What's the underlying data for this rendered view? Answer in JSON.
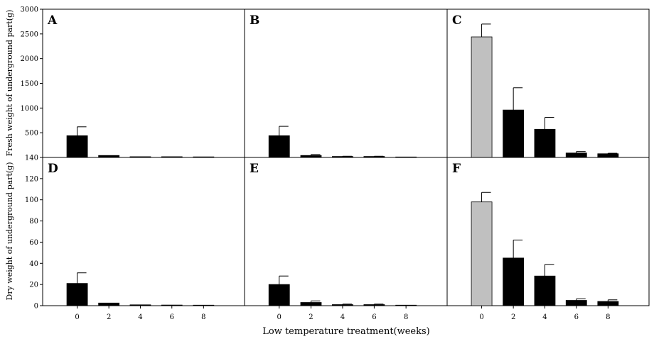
{
  "figure": {
    "xlabel": "Low temperature treatment(weeks)",
    "ylabel_top": "Fresh weight of underground part(g)",
    "ylabel_bottom": "Dry weight of underground part(g)"
  },
  "colors": {
    "treated_bar": "#000000",
    "control_bar": "#c0c0c0",
    "axis": "#000000"
  },
  "chart_data": [
    {
      "type": "bar",
      "panel": "A",
      "row": "top",
      "categories": [
        "0",
        "2",
        "4",
        "6",
        "8"
      ],
      "values": [
        440,
        40,
        15,
        15,
        12
      ],
      "errors": [
        180,
        0,
        0,
        0,
        0
      ],
      "bar_colors": [
        "black",
        "black",
        "black",
        "black",
        "black"
      ],
      "ylim": [
        0,
        3000
      ],
      "yticks": [
        0,
        500,
        1000,
        1500,
        2000,
        2500,
        3000
      ],
      "ytick_labels": [
        "",
        "500",
        "1000",
        "1500",
        "2000",
        "2500",
        "3000"
      ]
    },
    {
      "type": "bar",
      "panel": "B",
      "row": "top",
      "categories": [
        "0",
        "2",
        "4",
        "6",
        "8"
      ],
      "values": [
        440,
        40,
        20,
        20,
        10
      ],
      "errors": [
        190,
        20,
        5,
        5,
        0
      ],
      "bar_colors": [
        "black",
        "black",
        "black",
        "black",
        "black"
      ],
      "ylim": [
        0,
        3000
      ],
      "yticks": [
        0,
        500,
        1000,
        1500,
        2000,
        2500,
        3000
      ]
    },
    {
      "type": "bar",
      "panel": "C",
      "row": "top",
      "categories": [
        "0",
        "2",
        "4",
        "6",
        "8"
      ],
      "values": [
        2440,
        960,
        570,
        90,
        75
      ],
      "errors": [
        260,
        450,
        240,
        30,
        10
      ],
      "bar_colors": [
        "gray",
        "black",
        "black",
        "black",
        "black"
      ],
      "ylim": [
        0,
        3000
      ],
      "yticks": [
        0,
        500,
        1000,
        1500,
        2000,
        2500,
        3000
      ]
    },
    {
      "type": "bar",
      "panel": "D",
      "row": "bottom",
      "categories": [
        "0",
        "2",
        "4",
        "6",
        "8"
      ],
      "values": [
        21,
        2.5,
        0.8,
        0.6,
        0.5
      ],
      "errors": [
        10,
        0,
        0,
        0,
        0
      ],
      "bar_colors": [
        "black",
        "black",
        "black",
        "black",
        "black"
      ],
      "ylim": [
        0,
        140
      ],
      "yticks": [
        0,
        20,
        40,
        60,
        80,
        100,
        120,
        140
      ],
      "ytick_labels": [
        "0",
        "20",
        "40",
        "60",
        "80",
        "100",
        "120",
        "140"
      ]
    },
    {
      "type": "bar",
      "panel": "E",
      "row": "bottom",
      "categories": [
        "0",
        "2",
        "4",
        "6",
        "8"
      ],
      "values": [
        20,
        3,
        1,
        1,
        0.5
      ],
      "errors": [
        8,
        1.5,
        0.5,
        0.5,
        0
      ],
      "bar_colors": [
        "black",
        "black",
        "black",
        "black",
        "black"
      ],
      "ylim": [
        0,
        140
      ],
      "yticks": [
        0,
        20,
        40,
        60,
        80,
        100,
        120,
        140
      ]
    },
    {
      "type": "bar",
      "panel": "F",
      "row": "bottom",
      "categories": [
        "0",
        "2",
        "4",
        "6",
        "8"
      ],
      "values": [
        98,
        45,
        28,
        5,
        4
      ],
      "errors": [
        9,
        17,
        11,
        1.5,
        1.5
      ],
      "bar_colors": [
        "gray",
        "black",
        "black",
        "black",
        "black"
      ],
      "ylim": [
        0,
        140
      ],
      "yticks": [
        0,
        20,
        40,
        60,
        80,
        100,
        120,
        140
      ]
    }
  ]
}
